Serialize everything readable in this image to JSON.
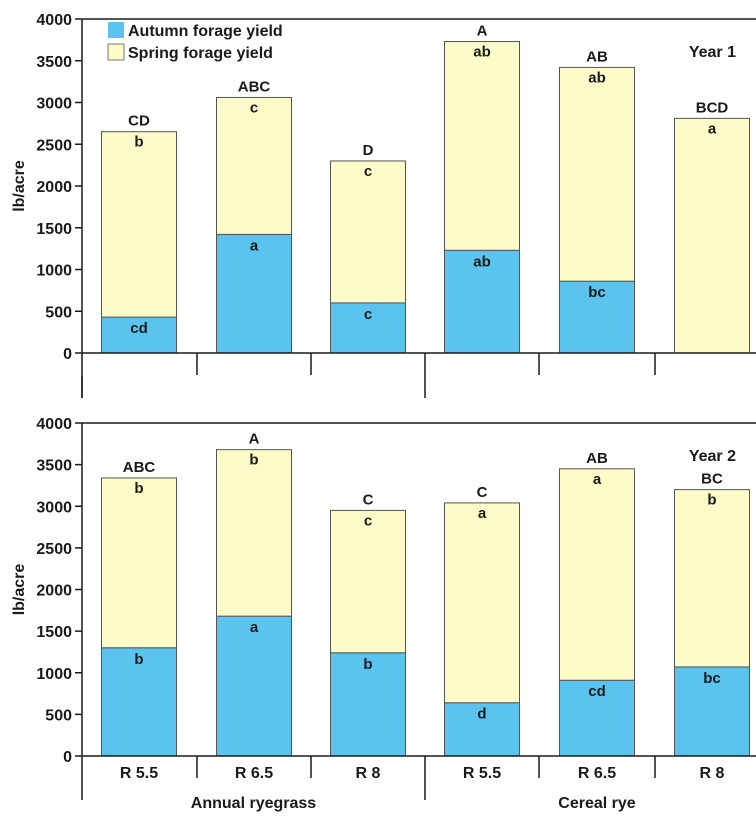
{
  "chart_data": {
    "type": "bar",
    "stacked": true,
    "ylabel": "lb/acre",
    "ylim": [
      0,
      4000
    ],
    "yticks": [
      0,
      500,
      1000,
      1500,
      2000,
      2500,
      3000,
      3500,
      4000
    ],
    "categories": [
      "R 5.5",
      "R 6.5",
      "R 8",
      "R 5.5",
      "R 6.5",
      "R 8"
    ],
    "groups": [
      {
        "label": "Annual ryegrass",
        "span": [
          0,
          2
        ]
      },
      {
        "label": "Cereal rye",
        "span": [
          3,
          5
        ]
      }
    ],
    "legend": {
      "placement": "top-left",
      "entries": [
        {
          "name": "Autumn forage yield",
          "color": "#5bc4ee"
        },
        {
          "name": "Spring forage yield",
          "color": "#fdfbc8"
        }
      ]
    },
    "colors": {
      "autumn": "#5bc4ee",
      "spring": "#fdfbc8",
      "edge": "#555555",
      "axis": "#1a1a1a"
    },
    "panels": [
      {
        "title": "Year 1",
        "series": [
          {
            "name": "Autumn forage yield",
            "values": [
              430,
              1420,
              600,
              1230,
              860,
              0
            ]
          },
          {
            "name": "Spring forage yield",
            "values": [
              2220,
              1640,
              1700,
              2500,
              2560,
              2810
            ]
          }
        ],
        "total_labels": [
          "CD",
          "ABC",
          "D",
          "A",
          "AB",
          "BCD"
        ],
        "autumn_labels": [
          "cd",
          "a",
          "c",
          "ab",
          "bc",
          ""
        ],
        "spring_labels": [
          "b",
          "c",
          "c",
          "ab",
          "ab",
          "a"
        ]
      },
      {
        "title": "Year 2",
        "series": [
          {
            "name": "Autumn forage yield",
            "values": [
              1300,
              1680,
              1240,
              640,
              910,
              1070
            ]
          },
          {
            "name": "Spring forage yield",
            "values": [
              2040,
              2000,
              1710,
              2400,
              2540,
              2130
            ]
          }
        ],
        "total_labels": [
          "ABC",
          "A",
          "C",
          "C",
          "AB",
          "BC"
        ],
        "autumn_labels": [
          "b",
          "a",
          "b",
          "d",
          "cd",
          "bc"
        ],
        "spring_labels": [
          "b",
          "b",
          "c",
          "a",
          "a",
          "b"
        ]
      }
    ]
  }
}
